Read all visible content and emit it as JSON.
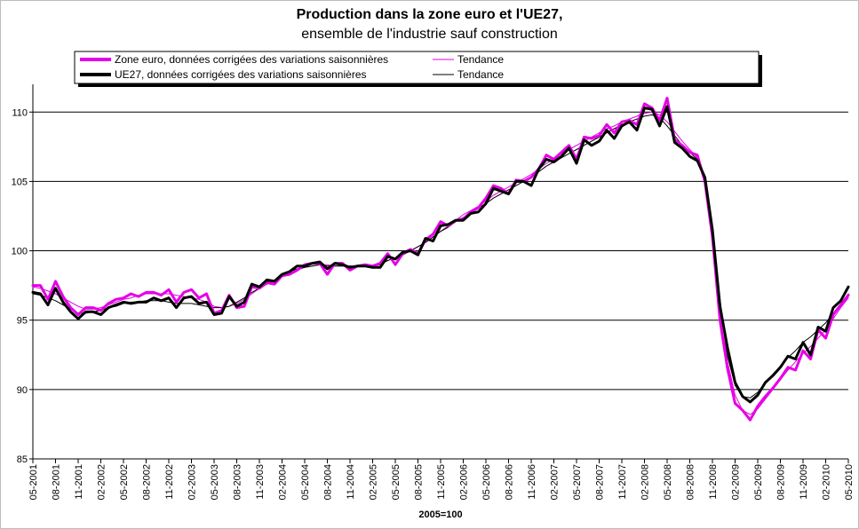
{
  "chart_data": {
    "type": "line",
    "title": "Production dans la zone euro et l'UE27,",
    "subtitle": "ensemble de l'industrie sauf construction",
    "xlabel": "2005=100",
    "ylabel": "",
    "ylim": [
      85,
      112
    ],
    "yticks": [
      85,
      90,
      95,
      100,
      105,
      110
    ],
    "grid": true,
    "legend_position": "top",
    "colors": {
      "zone_euro": "#e600e6",
      "ue27": "#000000",
      "frame": "#bdbdbd"
    },
    "tick_labels": [
      "05-2001",
      "08-2001",
      "11-2001",
      "02-2002",
      "05-2002",
      "08-2002",
      "11-2002",
      "02-2003",
      "05-2003",
      "08-2003",
      "11-2003",
      "02-2004",
      "05-2004",
      "08-2004",
      "11-2004",
      "02-2005",
      "05-2005",
      "08-2005",
      "11-2005",
      "02-2006",
      "05-2006",
      "08-2006",
      "11-2006",
      "02-2007",
      "05-2007",
      "08-2007",
      "11-2007",
      "02-2008",
      "05-2008",
      "08-2008",
      "11-2008",
      "02-2009",
      "05-2009",
      "08-2009",
      "11-2009",
      "02-2010",
      "05-2010"
    ],
    "series": [
      {
        "name": "Zone euro, données corrigées des variations saisonnières",
        "style": "thick",
        "color": "#e600e6",
        "values": [
          97.5,
          97.5,
          96.5,
          97.8,
          96.7,
          95.9,
          95.4,
          95.9,
          95.9,
          95.7,
          96.2,
          96.5,
          96.6,
          96.9,
          96.7,
          97.0,
          97.0,
          96.8,
          97.2,
          96.3,
          97.0,
          97.2,
          96.6,
          96.9,
          95.5,
          95.7,
          96.8,
          95.9,
          96.0,
          97.4,
          97.3,
          97.7,
          97.6,
          98.2,
          98.3,
          98.6,
          99.0,
          99.1,
          99.1,
          98.3,
          99.1,
          99.1,
          98.6,
          98.9,
          99.0,
          98.9,
          99.1,
          99.8,
          99.0,
          99.8,
          100.1,
          99.8,
          100.8,
          101.2,
          102.1,
          101.8,
          102.2,
          102.3,
          102.8,
          103.1,
          103.8,
          104.7,
          104.5,
          104.1,
          105.1,
          105.0,
          105.3,
          105.9,
          106.9,
          106.6,
          107.1,
          107.6,
          106.6,
          108.2,
          108.1,
          108.3,
          109.1,
          108.5,
          109.3,
          109.4,
          109.1,
          110.6,
          110.3,
          109.4,
          111.0,
          108.0,
          107.6,
          107.1,
          106.9,
          105.0,
          101.0,
          95.0,
          91.5,
          89.0,
          88.5,
          87.8,
          88.8,
          89.5,
          90.1,
          90.8,
          91.6,
          91.4,
          92.8,
          92.2,
          94.3,
          93.7,
          95.4,
          96.1,
          96.8
        ]
      },
      {
        "name": "Tendance",
        "style": "thin",
        "color": "#e600e6",
        "values": [
          97.4,
          97.3,
          97.1,
          96.9,
          96.6,
          96.3,
          96.0,
          95.8,
          95.8,
          95.9,
          96.1,
          96.3,
          96.5,
          96.6,
          96.8,
          96.9,
          96.9,
          96.9,
          96.9,
          96.8,
          96.7,
          96.6,
          96.5,
          96.3,
          96.0,
          95.9,
          96.0,
          96.2,
          96.5,
          96.9,
          97.3,
          97.6,
          97.9,
          98.2,
          98.4,
          98.6,
          98.8,
          98.9,
          99.0,
          99.0,
          98.9,
          98.9,
          98.9,
          98.9,
          98.9,
          98.9,
          99.1,
          99.3,
          99.5,
          99.7,
          100.0,
          100.3,
          100.6,
          101.0,
          101.4,
          101.8,
          102.2,
          102.6,
          102.9,
          103.2,
          103.6,
          104.0,
          104.3,
          104.6,
          104.9,
          105.2,
          105.5,
          105.9,
          106.3,
          106.6,
          107.0,
          107.3,
          107.6,
          107.9,
          108.2,
          108.5,
          108.8,
          109.0,
          109.3,
          109.5,
          109.7,
          109.9,
          110.0,
          109.8,
          109.3,
          108.6,
          107.9,
          107.3,
          106.7,
          105.3,
          101.7,
          96.5,
          92.0,
          89.6,
          88.5,
          88.2,
          88.6,
          89.3,
          90.0,
          90.7,
          91.4,
          92.0,
          92.6,
          93.1,
          93.7,
          94.3,
          95.1,
          95.9,
          96.6
        ]
      },
      {
        "name": "UE27, données corrigées des variations saisonnières",
        "style": "thick",
        "color": "#000000",
        "values": [
          97.0,
          96.9,
          96.1,
          97.3,
          96.3,
          95.6,
          95.1,
          95.6,
          95.6,
          95.4,
          95.9,
          96.1,
          96.3,
          96.2,
          96.3,
          96.3,
          96.6,
          96.4,
          96.6,
          95.9,
          96.6,
          96.7,
          96.2,
          96.3,
          95.4,
          95.5,
          96.7,
          96.0,
          96.3,
          97.6,
          97.4,
          97.9,
          97.8,
          98.3,
          98.5,
          98.9,
          98.9,
          99.1,
          99.2,
          98.7,
          99.1,
          99.0,
          98.8,
          98.9,
          98.9,
          98.8,
          98.8,
          99.6,
          99.4,
          99.9,
          100.0,
          99.7,
          100.9,
          100.7,
          101.8,
          101.9,
          102.2,
          102.2,
          102.7,
          102.8,
          103.4,
          104.5,
          104.3,
          104.1,
          105.0,
          105.0,
          104.7,
          105.9,
          106.6,
          106.4,
          106.8,
          107.4,
          106.3,
          108.0,
          107.6,
          107.9,
          108.7,
          108.1,
          109.0,
          109.3,
          108.7,
          110.3,
          110.2,
          109.0,
          110.4,
          107.8,
          107.4,
          106.8,
          106.5,
          105.3,
          101.5,
          96.0,
          93.0,
          90.5,
          89.5,
          89.1,
          89.6,
          90.5,
          91.0,
          91.6,
          92.4,
          92.2,
          93.4,
          92.5,
          94.5,
          94.2,
          95.9,
          96.4,
          97.4
        ]
      },
      {
        "name": "Tendance",
        "style": "thin",
        "color": "#000000",
        "values": [
          96.9,
          96.8,
          96.6,
          96.4,
          96.1,
          95.8,
          95.5,
          95.5,
          95.6,
          95.7,
          95.9,
          96.0,
          96.2,
          96.3,
          96.3,
          96.4,
          96.4,
          96.4,
          96.3,
          96.2,
          96.2,
          96.2,
          96.1,
          96.0,
          95.9,
          95.9,
          96.0,
          96.3,
          96.6,
          97.0,
          97.3,
          97.6,
          97.9,
          98.2,
          98.5,
          98.7,
          98.8,
          98.9,
          99.0,
          98.9,
          98.9,
          98.9,
          98.9,
          98.9,
          98.9,
          98.9,
          99.0,
          99.3,
          99.5,
          99.7,
          100.0,
          100.3,
          100.6,
          101.0,
          101.4,
          101.7,
          102.1,
          102.4,
          102.7,
          103.1,
          103.4,
          103.8,
          104.1,
          104.4,
          104.7,
          105.0,
          105.3,
          105.7,
          106.1,
          106.4,
          106.7,
          107.0,
          107.3,
          107.6,
          107.9,
          108.2,
          108.5,
          108.8,
          109.1,
          109.3,
          109.5,
          109.7,
          109.8,
          109.6,
          109.0,
          108.3,
          107.6,
          107.1,
          106.6,
          105.2,
          101.6,
          96.5,
          92.4,
          90.3,
          89.5,
          89.4,
          89.8,
          90.5,
          91.1,
          91.7,
          92.3,
          92.8,
          93.4,
          93.8,
          94.3,
          94.8,
          95.5,
          96.2,
          96.9
        ]
      }
    ]
  }
}
